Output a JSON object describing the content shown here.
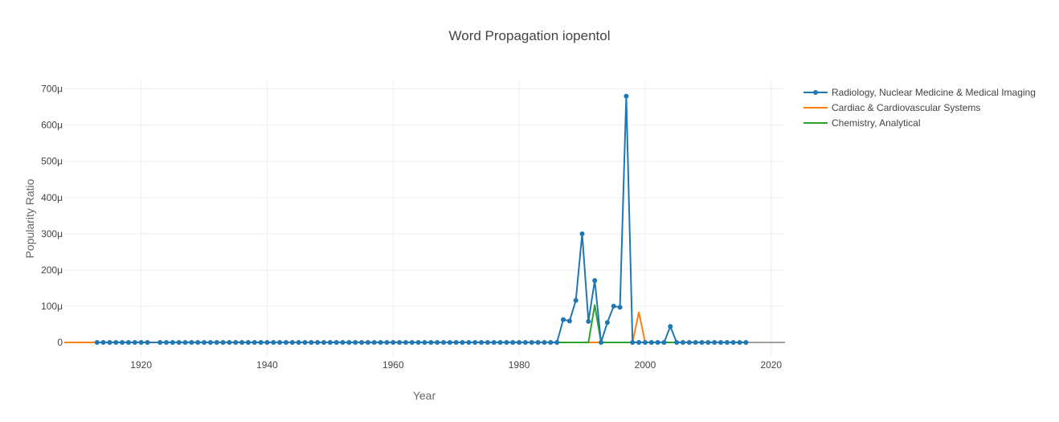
{
  "chart_data": {
    "type": "line",
    "title": "Word Propagation iopentol",
    "xlabel": "Year",
    "ylabel": "Popularity Ratio",
    "xlim": [
      1907.8,
      2022.2
    ],
    "ylim": [
      -4e-05,
      0.0007236
    ],
    "x_ticks": [
      1920,
      1940,
      1960,
      1980,
      2000,
      2020
    ],
    "y_ticks": [
      0,
      0.0001,
      0.0002,
      0.0003,
      0.0004,
      0.0005,
      0.0006,
      0.0007
    ],
    "y_tick_labels": [
      "0",
      "100μ",
      "200μ",
      "300μ",
      "400μ",
      "500μ",
      "600μ",
      "700μ"
    ],
    "grid": true,
    "legend_position": "top-right",
    "series": [
      {
        "name": "Radiology, Nuclear Medicine & Medical Imaging",
        "color": "#1f77b4",
        "mode": "lines+markers",
        "x": [
          1913,
          1914,
          1915,
          1916,
          1917,
          1918,
          1919,
          1920,
          1921,
          1923,
          1924,
          1925,
          1926,
          1927,
          1928,
          1929,
          1930,
          1931,
          1932,
          1933,
          1934,
          1935,
          1936,
          1937,
          1938,
          1939,
          1940,
          1941,
          1942,
          1943,
          1944,
          1945,
          1946,
          1947,
          1948,
          1949,
          1950,
          1951,
          1952,
          1953,
          1954,
          1955,
          1956,
          1957,
          1958,
          1959,
          1960,
          1961,
          1962,
          1963,
          1964,
          1965,
          1966,
          1967,
          1968,
          1969,
          1970,
          1971,
          1972,
          1973,
          1974,
          1975,
          1976,
          1977,
          1978,
          1979,
          1980,
          1981,
          1982,
          1983,
          1984,
          1985,
          1986,
          1987,
          1988,
          1989,
          1990,
          1991,
          1992,
          1993,
          1994,
          1995,
          1996,
          1997,
          1998,
          1999,
          2000,
          2001,
          2002,
          2003,
          2004,
          2005,
          2006,
          2007,
          2008,
          2009,
          2010,
          2011,
          2012,
          2013,
          2014,
          2015,
          2016
        ],
        "y": [
          0,
          0,
          0,
          0,
          0,
          0,
          0,
          0,
          0,
          0,
          0,
          0,
          0,
          0,
          0,
          0,
          0,
          0,
          0,
          0,
          0,
          0,
          0,
          0,
          0,
          0,
          0,
          0,
          0,
          0,
          0,
          0,
          0,
          0,
          0,
          0,
          0,
          0,
          0,
          0,
          0,
          0,
          0,
          0,
          0,
          0,
          0,
          0,
          0,
          0,
          0,
          0,
          0,
          0,
          0,
          0,
          0,
          0,
          0,
          0,
          0,
          0,
          0,
          0,
          0,
          0,
          0,
          0,
          0,
          0,
          0,
          0,
          0,
          6.3e-05,
          5.9e-05,
          0.000116,
          0.0003,
          5.8e-05,
          0.000171,
          0,
          5.5e-05,
          0.0001,
          9.7e-05,
          0.00068,
          0,
          0,
          0,
          0,
          0,
          0,
          4.4e-05,
          0,
          0,
          0,
          0,
          0,
          0,
          0,
          0,
          0,
          0,
          0,
          0
        ]
      },
      {
        "name": "Cardiac & Cardiovascular Systems",
        "color": "#ff7f0e",
        "mode": "lines",
        "x": [
          1908,
          1910,
          1912,
          1914,
          1916,
          1918,
          1920,
          1922,
          1924,
          1926,
          1928,
          1930,
          1935,
          1940,
          1950,
          1960,
          1970,
          1980,
          1990,
          1997,
          1998,
          1999,
          2000,
          2005,
          2010,
          2016
        ],
        "y": [
          0,
          0,
          0,
          0,
          0,
          0,
          0,
          0,
          0,
          0,
          0,
          0,
          0,
          0,
          0,
          0,
          0,
          0,
          0,
          0,
          0,
          8.3e-05,
          0,
          0,
          0,
          0
        ]
      },
      {
        "name": "Chemistry, Analytical",
        "color": "#2ca02c",
        "mode": "lines",
        "x": [
          1930,
          1940,
          1950,
          1960,
          1970,
          1980,
          1990,
          1991,
          1992,
          1993,
          2000,
          2010,
          2016
        ],
        "y": [
          0,
          0,
          0,
          0,
          0,
          0,
          0,
          0,
          0.000103,
          0,
          0,
          0,
          0
        ]
      }
    ]
  }
}
